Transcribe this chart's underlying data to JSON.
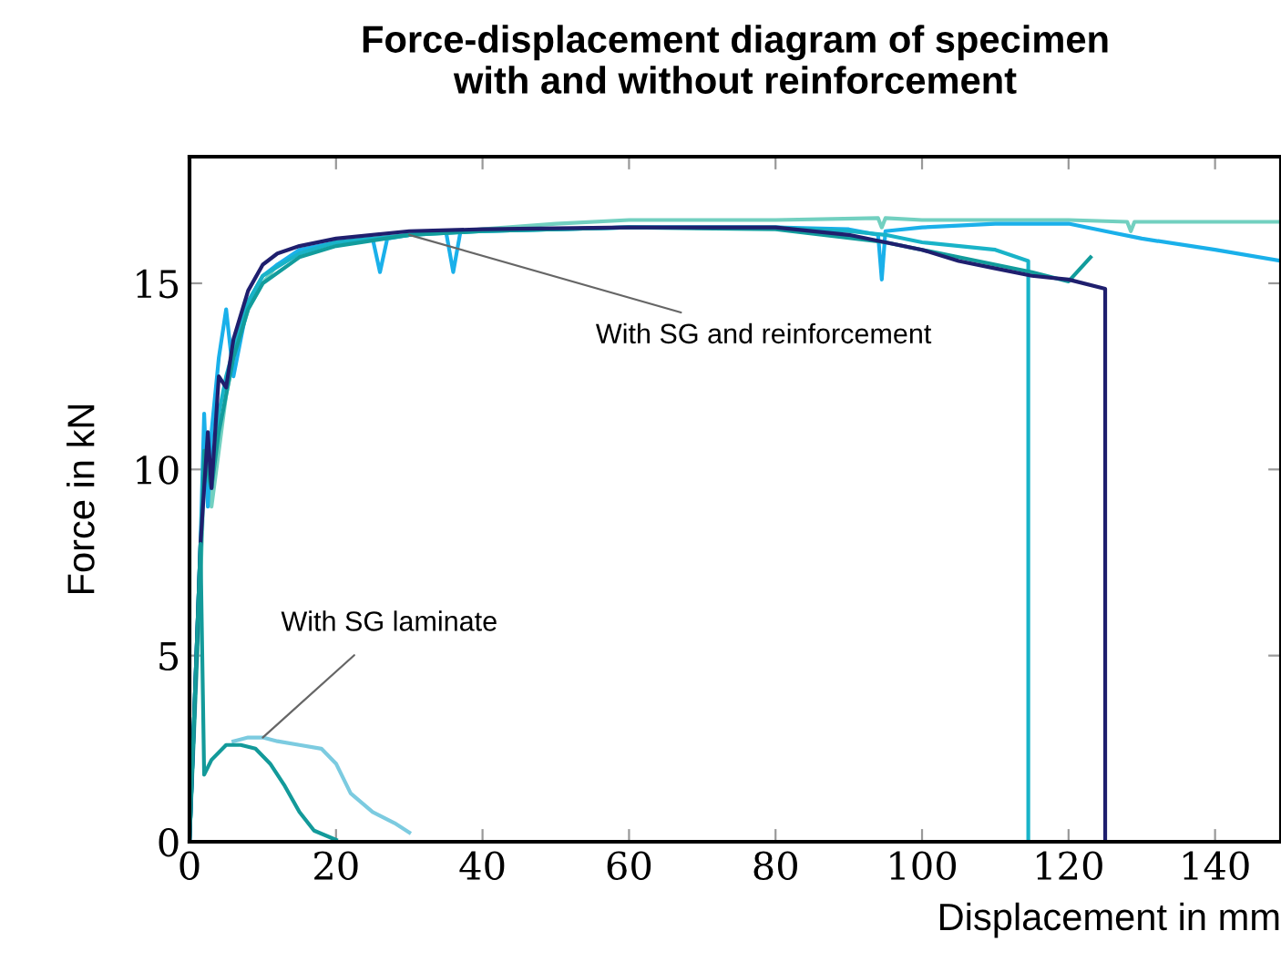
{
  "chart_data": {
    "type": "line",
    "title": "Force-displacement diagram of specimen\nwith and without reinforcement",
    "xlabel": "Displacement in mm",
    "ylabel": "Force in kN",
    "xlim": [
      0,
      149
    ],
    "ylim": [
      0,
      18.4
    ],
    "xticks": [
      0,
      20,
      40,
      60,
      80,
      100,
      120,
      140
    ],
    "yticks": [
      0,
      5,
      10,
      15
    ],
    "grid": false,
    "marker": "none",
    "line_style": "solid",
    "series": [
      {
        "color": "#72d0c0",
        "x": [
          0,
          1.5,
          2.2,
          3,
          4,
          5,
          6,
          8,
          10,
          12,
          15,
          20,
          25,
          30,
          40,
          50,
          60,
          80,
          94,
          94.5,
          95,
          100,
          120,
          128,
          128.5,
          129,
          140,
          149
        ],
        "values": [
          0,
          7,
          11,
          9,
          10.5,
          12,
          13,
          14.3,
          15,
          15.5,
          15.8,
          16.1,
          16.2,
          16.3,
          16.45,
          16.6,
          16.7,
          16.7,
          16.75,
          16.5,
          16.75,
          16.7,
          16.7,
          16.65,
          16.4,
          16.65,
          16.65,
          16.65
        ]
      },
      {
        "color": "#1ab0ea",
        "x": [
          0,
          1.5,
          2,
          2.5,
          3,
          4,
          5,
          6,
          8,
          10,
          12,
          15,
          20,
          25,
          26,
          27,
          30,
          35,
          36,
          37,
          40,
          60,
          80,
          90,
          94,
          94.5,
          95,
          100,
          110,
          120,
          125,
          130,
          140,
          149
        ],
        "values": [
          0,
          8,
          11.5,
          9,
          11,
          13,
          14.3,
          12.5,
          14.5,
          15.2,
          15.5,
          15.9,
          16.1,
          16.2,
          15.3,
          16.2,
          16.3,
          16.4,
          15.3,
          16.4,
          16.4,
          16.5,
          16.5,
          16.45,
          16.3,
          15.1,
          16.4,
          16.5,
          16.6,
          16.6,
          16.4,
          16.2,
          15.9,
          15.6
        ]
      },
      {
        "color": "#19b3c8",
        "x": [
          0,
          1.5,
          2,
          3,
          4,
          5,
          6,
          8,
          10,
          15,
          20,
          30,
          40,
          60,
          80,
          90,
          95,
          100,
          110,
          114.5,
          114.5
        ],
        "values": [
          0,
          8,
          10,
          9.5,
          11.5,
          12.5,
          13.2,
          14.5,
          15.2,
          15.8,
          16.1,
          16.3,
          16.4,
          16.5,
          16.5,
          16.4,
          16.3,
          16.1,
          15.9,
          15.6,
          0
        ]
      },
      {
        "color": "#129c9c",
        "x": [
          0,
          1.5,
          2,
          3,
          4,
          5,
          6,
          8,
          10,
          15,
          20,
          30,
          40,
          60,
          80,
          95,
          100,
          110,
          115,
          120,
          123
        ],
        "values": [
          0,
          7.5,
          10.5,
          9.5,
          11,
          12,
          13,
          14.3,
          15,
          15.7,
          16.0,
          16.3,
          16.4,
          16.5,
          16.45,
          16.1,
          15.9,
          15.5,
          15.3,
          15.05,
          15.7
        ]
      },
      {
        "color": "#1f1f6e",
        "x": [
          0,
          1.5,
          2.5,
          3,
          4,
          5,
          6,
          8,
          10,
          12,
          15,
          20,
          30,
          40,
          60,
          80,
          90,
          95,
          100,
          105,
          110,
          115,
          120,
          125,
          125
        ],
        "values": [
          0,
          8,
          11,
          9.5,
          12.5,
          12.2,
          13.5,
          14.8,
          15.5,
          15.8,
          16.0,
          16.2,
          16.4,
          16.45,
          16.5,
          16.5,
          16.3,
          16.1,
          15.9,
          15.6,
          15.4,
          15.2,
          15.1,
          14.85,
          0
        ]
      },
      {
        "color": "#7ccbe0",
        "x": [
          6,
          8,
          10,
          12,
          15,
          18,
          20,
          22,
          25,
          28,
          30
        ],
        "values": [
          2.7,
          2.8,
          2.8,
          2.7,
          2.6,
          2.5,
          2.1,
          1.3,
          0.8,
          0.5,
          0.25
        ]
      },
      {
        "color": "#139a9a",
        "x": [
          0,
          1.5,
          2,
          3,
          5,
          7,
          9,
          11,
          13,
          15,
          17,
          20
        ],
        "values": [
          0,
          8,
          1.8,
          2.2,
          2.6,
          2.6,
          2.5,
          2.1,
          1.5,
          0.8,
          0.3,
          0.05
        ]
      }
    ],
    "annotations": [
      {
        "text": "With SG and reinforcement",
        "x": 30,
        "y": 16.3
      },
      {
        "text": "With SG laminate",
        "x": 10,
        "y": 2.8
      }
    ]
  }
}
